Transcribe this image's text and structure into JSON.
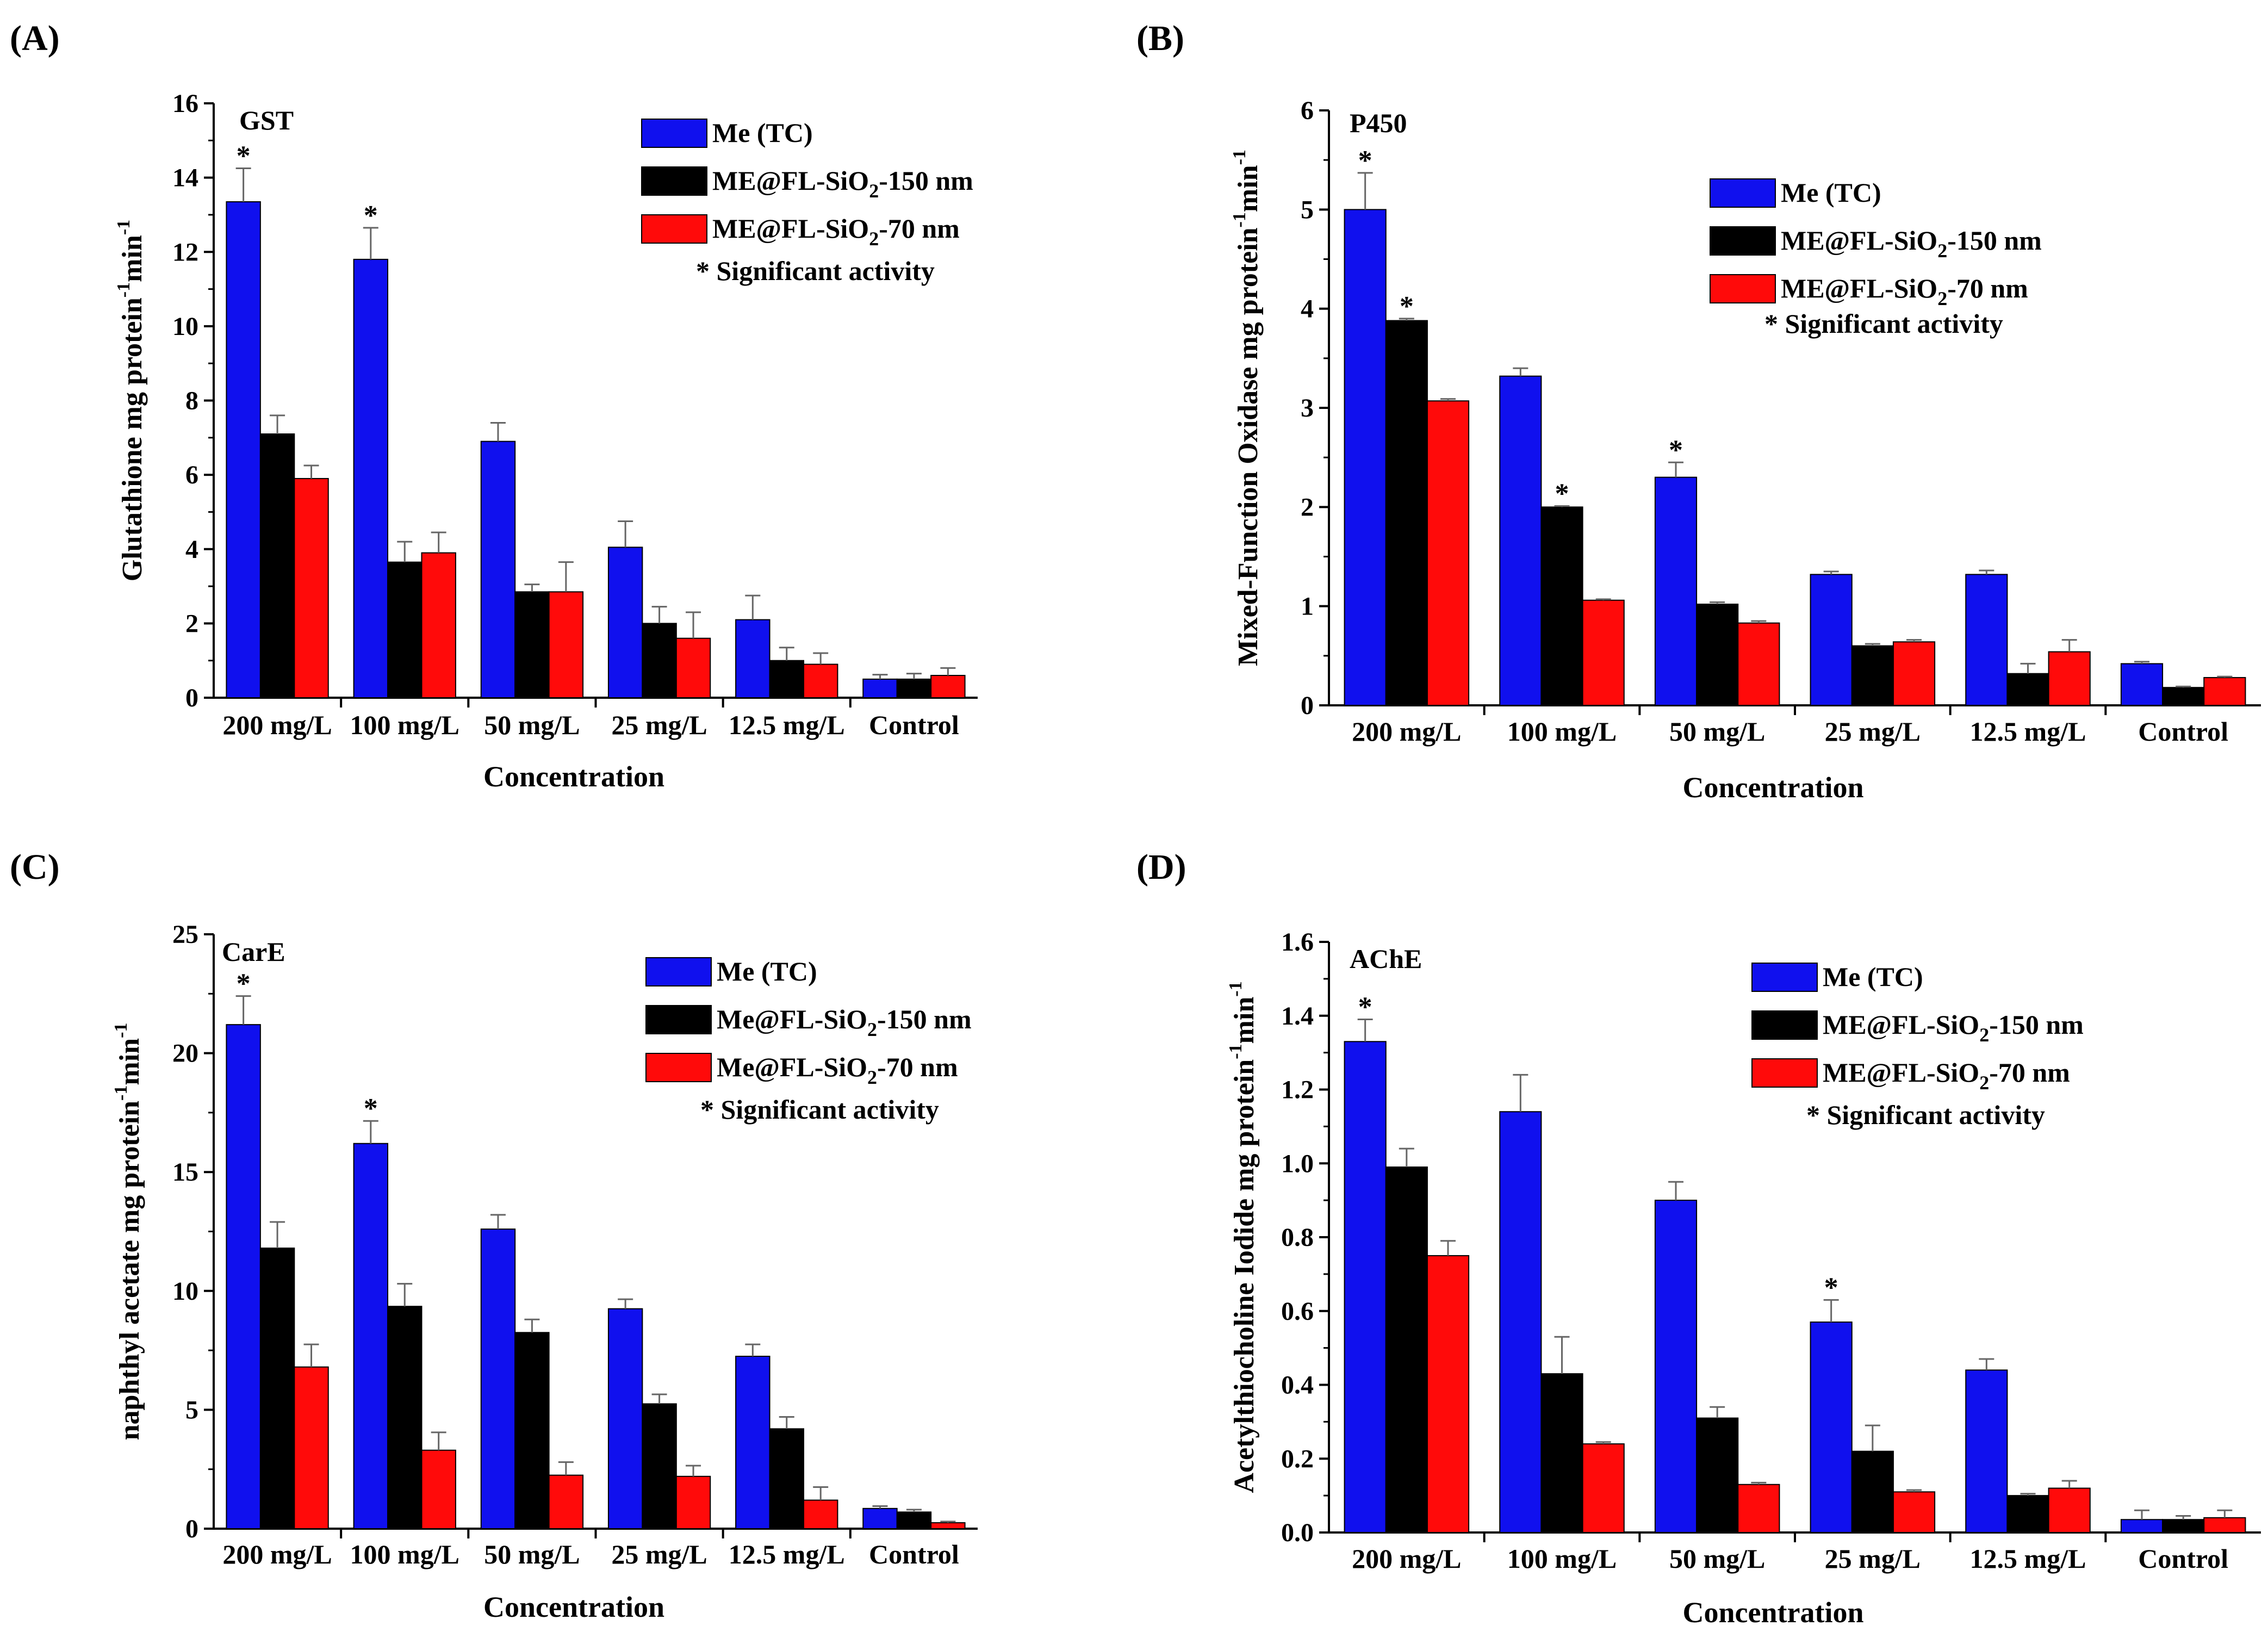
{
  "colors": {
    "Me (TC)": "#1010ee",
    "ME@FL-SiO2-150 nm": "#000000",
    "ME@FL-SiO2-70 nm": "#ff0a0a"
  },
  "chart_data": [
    {
      "type": "bar",
      "panel": "(A)",
      "caption": "GST",
      "ylabel": "Glutathione mg protein-1min-1",
      "ylabel_parts": {
        "main": "Glutathione mg protein",
        "sup1": "-1",
        "mid": "min",
        "sup2": "-1"
      },
      "xlabel": "Concentration",
      "ylim": [
        0,
        16
      ],
      "yticks": [
        0,
        2,
        4,
        6,
        8,
        10,
        12,
        14,
        16
      ],
      "categories": [
        "200 mg/L",
        "100 mg/L",
        "50 mg/L",
        "25 mg/L",
        "12.5 mg/L",
        "Control"
      ],
      "series": [
        {
          "name": "Me (TC)",
          "legend_parts": [
            "Me (TC)"
          ],
          "values": [
            13.35,
            11.8,
            6.9,
            4.05,
            2.1,
            0.5
          ],
          "errors": [
            0.9,
            0.85,
            0.5,
            0.7,
            0.65,
            0.12
          ],
          "star": [
            true,
            true,
            false,
            false,
            false,
            false
          ]
        },
        {
          "name": "ME@FL-SiO2-150 nm",
          "legend_parts": [
            "ME@FL-SiO",
            "2",
            "-150 nm"
          ],
          "values": [
            7.1,
            3.65,
            2.85,
            2.0,
            1.0,
            0.5
          ],
          "errors": [
            0.5,
            0.55,
            0.2,
            0.45,
            0.35,
            0.15
          ],
          "star": [
            false,
            false,
            false,
            false,
            false,
            false
          ]
        },
        {
          "name": "ME@FL-SiO2-70 nm",
          "legend_parts": [
            "ME@FL-SiO",
            "2",
            "-70 nm"
          ],
          "values": [
            5.9,
            3.9,
            2.85,
            1.6,
            0.9,
            0.6
          ],
          "errors": [
            0.35,
            0.55,
            0.8,
            0.7,
            0.3,
            0.2
          ],
          "star": [
            false,
            false,
            false,
            false,
            false,
            false
          ]
        }
      ],
      "note": "* Significant activity"
    },
    {
      "type": "bar",
      "panel": "(B)",
      "caption": "P450",
      "ylabel": "Mixed-Function Oxidase mg protein-1min-1",
      "ylabel_parts": {
        "main": "Mixed-Function Oxidase mg protein",
        "sup1": "-1",
        "mid": "min",
        "sup2": "-1"
      },
      "xlabel": "Concentration",
      "ylim": [
        0,
        6
      ],
      "yticks": [
        0,
        1,
        2,
        3,
        4,
        5,
        6
      ],
      "categories": [
        "200 mg/L",
        "100 mg/L",
        "50 mg/L",
        "25 mg/L",
        "12.5 mg/L",
        "Control"
      ],
      "series": [
        {
          "name": "Me (TC)",
          "legend_parts": [
            "Me (TC)"
          ],
          "values": [
            5.0,
            3.32,
            2.3,
            1.32,
            1.32,
            0.42
          ],
          "errors": [
            0.37,
            0.08,
            0.15,
            0.03,
            0.04,
            0.02
          ],
          "star": [
            true,
            false,
            true,
            false,
            false,
            false
          ]
        },
        {
          "name": "ME@FL-SiO2-150 nm",
          "legend_parts": [
            "ME@FL-SiO",
            "2",
            "-150 nm"
          ],
          "values": [
            3.88,
            2.0,
            1.02,
            0.6,
            0.32,
            0.18
          ],
          "errors": [
            0.02,
            0.01,
            0.02,
            0.02,
            0.1,
            0.01
          ],
          "star": [
            true,
            true,
            false,
            false,
            false,
            false
          ]
        },
        {
          "name": "ME@FL-SiO2-70 nm",
          "legend_parts": [
            "ME@FL-SiO",
            "2",
            "-70 nm"
          ],
          "values": [
            3.07,
            1.06,
            0.83,
            0.64,
            0.54,
            0.28
          ],
          "errors": [
            0.02,
            0.01,
            0.02,
            0.02,
            0.12,
            0.01
          ],
          "star": [
            false,
            false,
            false,
            false,
            false,
            false
          ]
        }
      ],
      "note": "* Significant activity"
    },
    {
      "type": "bar",
      "panel": "(C)",
      "caption": "CarE",
      "ylabel": "naphthyl acetate mg protein-1min-1",
      "ylabel_parts": {
        "main": "naphthyl acetate mg protein",
        "sup1": "-1",
        "mid": "min",
        "sup2": "-1"
      },
      "xlabel": "Concentration",
      "ylim": [
        0,
        25
      ],
      "yticks": [
        0,
        5,
        10,
        15,
        20,
        25
      ],
      "categories": [
        "200 mg/L",
        "100 mg/L",
        "50 mg/L",
        "25 mg/L",
        "12.5 mg/L",
        "Control"
      ],
      "series": [
        {
          "name": "Me (TC)",
          "legend_parts": [
            "Me (TC)"
          ],
          "values": [
            21.2,
            16.2,
            12.6,
            9.25,
            7.25,
            0.85
          ],
          "errors": [
            1.2,
            0.95,
            0.6,
            0.4,
            0.5,
            0.1
          ],
          "star": [
            true,
            true,
            false,
            false,
            false,
            false
          ]
        },
        {
          "name": "Me@FL-SiO2-150 nm",
          "legend_parts": [
            "Me@FL-SiO",
            "2",
            "-150 nm"
          ],
          "values": [
            11.8,
            9.35,
            8.25,
            5.25,
            4.2,
            0.7
          ],
          "errors": [
            1.1,
            0.95,
            0.55,
            0.4,
            0.5,
            0.1
          ],
          "star": [
            false,
            false,
            false,
            false,
            false,
            false
          ]
        },
        {
          "name": "Me@FL-SiO2-70 nm",
          "legend_parts": [
            "Me@FL-SiO",
            "2",
            "-70 nm"
          ],
          "values": [
            6.8,
            3.3,
            2.25,
            2.2,
            1.2,
            0.25
          ],
          "errors": [
            0.95,
            0.75,
            0.55,
            0.45,
            0.55,
            0.05
          ],
          "star": [
            false,
            false,
            false,
            false,
            false,
            false
          ]
        }
      ],
      "note": "* Significant activity"
    },
    {
      "type": "bar",
      "panel": "(D)",
      "caption": "AChE",
      "ylabel": "Acetylthiocholine Iodide mg protein-1min-1",
      "ylabel_parts": {
        "main": "Acetylthiocholine Iodide mg protein",
        "sup1": "-1",
        "mid": "min",
        "sup2": "-1"
      },
      "xlabel": "Concentration",
      "ylim": [
        0,
        1.6
      ],
      "yticks": [
        "0.0",
        "0.2",
        "0.4",
        "0.6",
        "0.8",
        "1.0",
        "1.2",
        "1.4",
        "1.6"
      ],
      "categories": [
        "200 mg/L",
        "100 mg/L",
        "50 mg/L",
        "25 mg/L",
        "12.5 mg/L",
        "Control"
      ],
      "series": [
        {
          "name": "Me (TC)",
          "legend_parts": [
            "Me (TC)"
          ],
          "values": [
            1.33,
            1.14,
            0.9,
            0.57,
            0.44,
            0.035
          ],
          "errors": [
            0.06,
            0.1,
            0.05,
            0.06,
            0.03,
            0.025
          ],
          "star": [
            true,
            false,
            false,
            true,
            false,
            false
          ]
        },
        {
          "name": "ME@FL-SiO2-150 nm",
          "legend_parts": [
            "ME@FL-SiO",
            "2",
            "-150 nm"
          ],
          "values": [
            0.99,
            0.43,
            0.31,
            0.22,
            0.1,
            0.035
          ],
          "errors": [
            0.05,
            0.1,
            0.03,
            0.07,
            0.005,
            0.01
          ],
          "star": [
            false,
            false,
            false,
            false,
            false,
            false
          ]
        },
        {
          "name": "ME@FL-SiO2-70 nm",
          "legend_parts": [
            "ME@FL-SiO",
            "2",
            "-70 nm"
          ],
          "values": [
            0.75,
            0.24,
            0.13,
            0.11,
            0.12,
            0.04
          ],
          "errors": [
            0.04,
            0.005,
            0.005,
            0.005,
            0.02,
            0.02
          ],
          "star": [
            false,
            false,
            false,
            false,
            false,
            false
          ]
        }
      ],
      "note": "* Significant activity"
    }
  ]
}
